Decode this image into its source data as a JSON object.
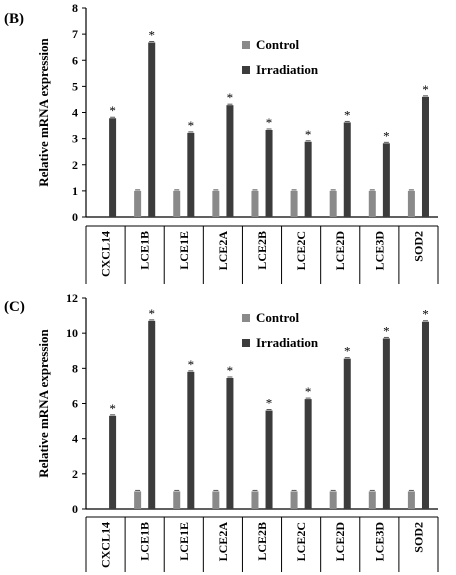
{
  "colors": {
    "control": "#8a8a8a",
    "irradiation": "#3c3c3c",
    "axis": "#000000"
  },
  "chart_data": [
    {
      "type": "bar",
      "panel_label": "(B)",
      "ylabel": "Relative mRNA expression",
      "ylim": [
        0,
        8
      ],
      "yticks": [
        "0",
        "1",
        "2",
        "3",
        "4",
        "5",
        "6",
        "7",
        "8"
      ],
      "categories": [
        "CXCL14",
        "LCE1B",
        "LCE1E",
        "LCE2A",
        "LCE2B",
        "LCE2C",
        "LCE2D",
        "LCE3D",
        "SOD2"
      ],
      "legend_position": "top-right",
      "series": [
        {
          "name": "Control",
          "values": [
            0,
            1,
            1,
            1,
            1,
            1,
            1,
            1,
            1
          ]
        },
        {
          "name": "Irradiation",
          "values": [
            3.78,
            6.68,
            3.22,
            4.28,
            3.33,
            2.88,
            3.62,
            2.82,
            4.6
          ]
        }
      ],
      "significance_marker": "*"
    },
    {
      "type": "bar",
      "panel_label": "(C)",
      "ylabel": "Relative mRNA expression",
      "ylim": [
        0,
        12
      ],
      "yticks": [
        "0",
        "2",
        "4",
        "6",
        "8",
        "10",
        "12"
      ],
      "categories": [
        "CXCL14",
        "LCE1B",
        "LCE1E",
        "LCE2A",
        "LCE2B",
        "LCE2C",
        "LCE2D",
        "LCE3D",
        "SOD2"
      ],
      "legend_position": "top-left",
      "series": [
        {
          "name": "Control",
          "values": [
            0,
            1,
            1,
            1,
            1,
            1,
            1,
            1,
            1
          ]
        },
        {
          "name": "Irradiation",
          "values": [
            5.3,
            10.7,
            7.8,
            7.45,
            5.6,
            6.25,
            8.55,
            9.7,
            10.65
          ]
        }
      ],
      "significance_marker": "*"
    }
  ]
}
